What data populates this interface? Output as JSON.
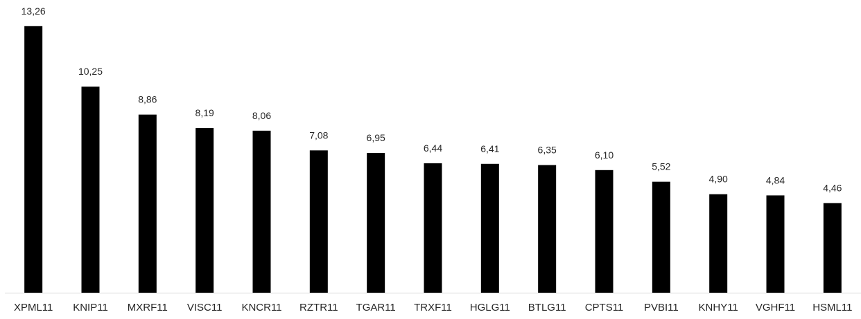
{
  "chart_data": {
    "type": "bar",
    "title": "",
    "xlabel": "",
    "ylabel": "",
    "categories": [
      "XPML11",
      "KNIP11",
      "MXRF11",
      "VISC11",
      "KNCR11",
      "RZTR11",
      "TGAR11",
      "TRXF11",
      "HGLG11",
      "BTLG11",
      "CPTS11",
      "PVBI11",
      "KNHY11",
      "VGHF11",
      "HSML11"
    ],
    "values": [
      13.26,
      10.25,
      8.86,
      8.19,
      8.06,
      7.08,
      6.95,
      6.44,
      6.41,
      6.35,
      6.1,
      5.52,
      4.9,
      4.84,
      4.46
    ],
    "value_labels": [
      "13,26",
      "10,25",
      "8,86",
      "8,19",
      "8,06",
      "7,08",
      "6,95",
      "6,44",
      "6,41",
      "6,35",
      "6,10",
      "5,52",
      "4,90",
      "4,84",
      "4,46"
    ],
    "ylim": [
      0,
      14.4
    ],
    "grid": false,
    "legend": "none",
    "bar_color": "#000000",
    "axis_color": "#d9d9d9",
    "text_color": "#262626"
  }
}
